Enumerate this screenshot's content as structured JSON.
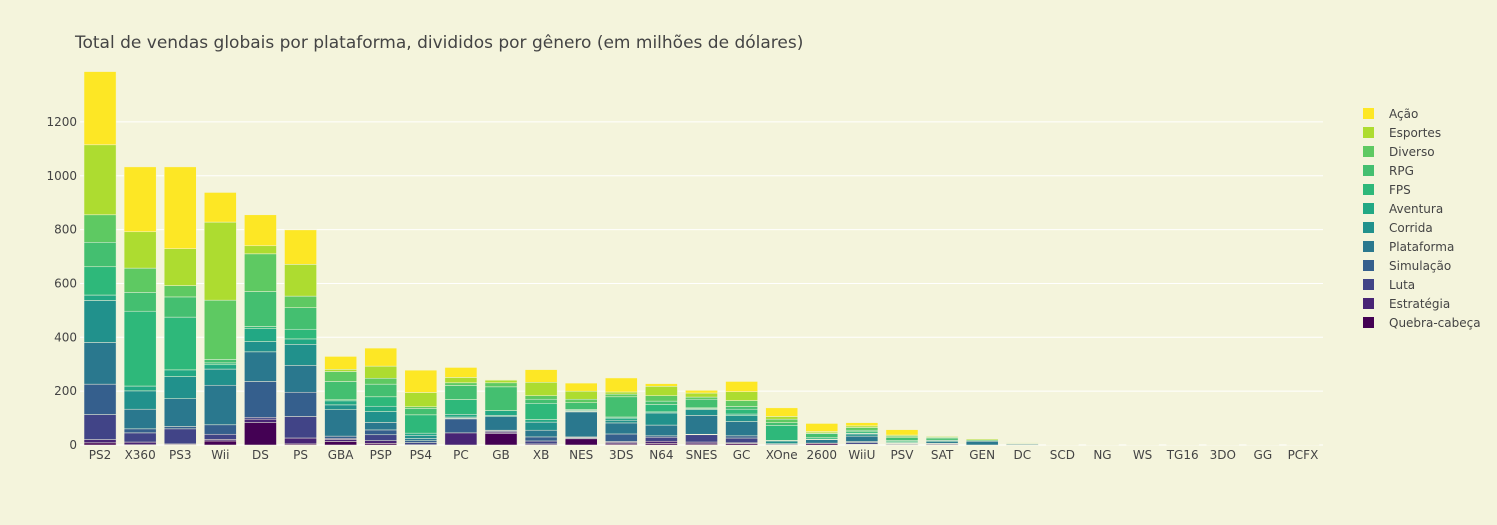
{
  "chart_data": {
    "type": "bar",
    "stacked": true,
    "title": "Total de vendas globais por plataforma, divididos por gênero (em milhões de dólares)",
    "xlabel": "",
    "ylabel": "",
    "ylim": [
      0,
      1300
    ],
    "yticks": [
      0,
      200,
      400,
      600,
      800,
      1000,
      1200
    ],
    "legend_position": "right",
    "categories": [
      "PS2",
      "X360",
      "PS3",
      "Wii",
      "DS",
      "PS",
      "GBA",
      "PSP",
      "PS4",
      "PC",
      "GB",
      "XB",
      "NES",
      "3DS",
      "N64",
      "SNES",
      "GC",
      "XOne",
      "2600",
      "WiiU",
      "PSV",
      "SAT",
      "GEN",
      "DC",
      "SCD",
      "NG",
      "WS",
      "TG16",
      "3DO",
      "GG",
      "PCFX"
    ],
    "series": [
      {
        "name": "Quebra-cabeça",
        "color": "#440154",
        "values": [
          8,
          1,
          1,
          15,
          83,
          4,
          13,
          6,
          0,
          0,
          42,
          0,
          23,
          4,
          6,
          4,
          5,
          0,
          6,
          1,
          0,
          0,
          0,
          0,
          0,
          0,
          0,
          0,
          0,
          0,
          0
        ]
      },
      {
        "name": "Estratégia",
        "color": "#482475",
        "values": [
          12,
          10,
          3,
          6,
          13,
          22,
          8,
          10,
          1,
          45,
          6,
          4,
          1,
          6,
          8,
          7,
          3,
          0,
          0,
          2,
          1,
          3,
          0,
          0,
          0,
          0,
          0,
          0,
          0,
          0,
          0
        ]
      },
      {
        "name": "Luta",
        "color": "#414487",
        "values": [
          93,
          34,
          56,
          19,
          7,
          80,
          4,
          22,
          8,
          0,
          4,
          11,
          4,
          3,
          15,
          27,
          18,
          3,
          1,
          6,
          3,
          2,
          0,
          0,
          0,
          0,
          0,
          0,
          0,
          0,
          0
        ]
      },
      {
        "name": "Simulação",
        "color": "#355f8d",
        "values": [
          113,
          15,
          9,
          35,
          133,
          90,
          8,
          18,
          7,
          52,
          3,
          15,
          2,
          28,
          5,
          2,
          8,
          1,
          0,
          4,
          1,
          1,
          0,
          0,
          0,
          0,
          0,
          0,
          0,
          0,
          0
        ]
      },
      {
        "name": "Plataforma",
        "color": "#2a788e",
        "values": [
          155,
          73,
          103,
          147,
          110,
          100,
          98,
          28,
          8,
          3,
          50,
          25,
          93,
          41,
          40,
          70,
          53,
          1,
          13,
          20,
          2,
          6,
          14,
          3,
          0,
          0,
          0,
          0,
          0,
          0,
          0
        ]
      },
      {
        "name": "Corrida",
        "color": "#21918c",
        "values": [
          156,
          68,
          82,
          60,
          38,
          78,
          18,
          40,
          12,
          4,
          5,
          30,
          3,
          10,
          45,
          22,
          22,
          10,
          2,
          8,
          2,
          5,
          0,
          2,
          0,
          0,
          0,
          0,
          0,
          0,
          0
        ]
      },
      {
        "name": "Aventura",
        "color": "#22a884",
        "values": [
          20,
          18,
          25,
          16,
          48,
          20,
          15,
          20,
          8,
          10,
          18,
          10,
          3,
          8,
          4,
          3,
          6,
          2,
          0,
          2,
          3,
          1,
          0,
          0,
          0,
          0,
          0,
          0,
          0,
          0,
          0
        ]
      },
      {
        "name": "FPS",
        "color": "#2eb87a",
        "values": [
          105,
          278,
          196,
          7,
          8,
          36,
          4,
          35,
          68,
          55,
          0,
          60,
          3,
          4,
          28,
          3,
          18,
          56,
          5,
          6,
          5,
          0,
          0,
          0,
          0,
          0,
          0,
          0,
          0,
          0,
          0
        ]
      },
      {
        "name": "RPG",
        "color": "#44bf70",
        "values": [
          91,
          70,
          75,
          13,
          130,
          80,
          68,
          47,
          24,
          52,
          88,
          15,
          25,
          75,
          12,
          32,
          10,
          10,
          15,
          6,
          10,
          8,
          4,
          2,
          0,
          0,
          0,
          0,
          0,
          0,
          0
        ]
      },
      {
        "name": "Diverso",
        "color": "#5ec962",
        "values": [
          102,
          90,
          42,
          220,
          140,
          43,
          37,
          22,
          6,
          10,
          15,
          13,
          13,
          10,
          20,
          8,
          22,
          13,
          3,
          10,
          6,
          3,
          1,
          0,
          0,
          0,
          0,
          0,
          0,
          0,
          0
        ]
      },
      {
        "name": "Esportes",
        "color": "#addc30",
        "values": [
          260,
          135,
          137,
          290,
          30,
          118,
          8,
          45,
          53,
          20,
          10,
          50,
          30,
          8,
          35,
          15,
          33,
          10,
          5,
          6,
          4,
          3,
          4,
          1,
          0,
          0,
          0,
          0,
          0,
          0,
          0
        ]
      },
      {
        "name": "Ação",
        "color": "#fde725",
        "values": [
          272,
          241,
          304,
          110,
          115,
          128,
          48,
          67,
          83,
          37,
          2,
          47,
          30,
          52,
          10,
          10,
          38,
          32,
          30,
          12,
          20,
          1,
          1,
          0,
          1,
          1,
          1,
          1,
          1,
          1,
          1
        ]
      }
    ]
  }
}
